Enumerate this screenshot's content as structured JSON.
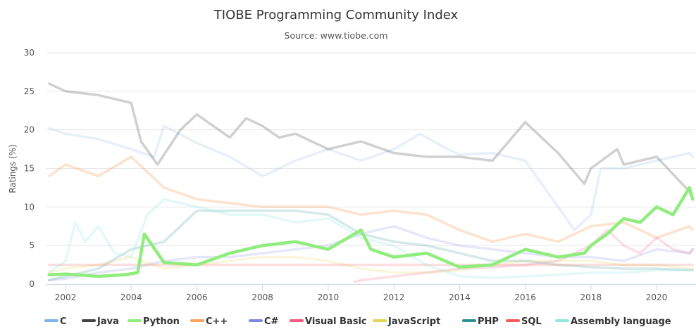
{
  "chart_data": {
    "type": "line",
    "title": "TIOBE Programming Community Index",
    "subtitle": "Source: www.tiobe.com",
    "xlabel": "",
    "ylabel": "Ratings (%)",
    "xlim": [
      2001.4,
      2021.2
    ],
    "ylim": [
      0,
      30
    ],
    "x_ticks": [
      2002,
      2004,
      2006,
      2008,
      2010,
      2012,
      2014,
      2016,
      2018,
      2020
    ],
    "y_ticks": [
      0,
      5,
      10,
      15,
      20,
      25,
      30
    ],
    "grid": "horizontal",
    "legend_position": "bottom",
    "highlighted_series": "Python",
    "series": [
      {
        "name": "C",
        "color": "#7cb5ec",
        "opacity": 0.2,
        "x": [
          2001.5,
          2002,
          2003,
          2004,
          2004.7,
          2005,
          2006,
          2007,
          2008,
          2009,
          2010,
          2011,
          2012,
          2012.8,
          2013.5,
          2014,
          2015,
          2016,
          2017,
          2017.5,
          2018,
          2018.3,
          2019,
          2020,
          2021,
          2021.1
        ],
        "y": [
          20.2,
          19.5,
          18.8,
          17.5,
          16.5,
          20.5,
          18.3,
          16.5,
          14.0,
          16.0,
          17.5,
          16.0,
          17.5,
          19.5,
          17.8,
          16.8,
          17.0,
          16.0,
          10.0,
          7.0,
          9.0,
          15.0,
          15.0,
          16.0,
          17.0,
          16.5
        ]
      },
      {
        "name": "Java",
        "color": "#434348",
        "opacity": 0.25,
        "x": [
          2001.5,
          2002,
          2003,
          2004,
          2004.3,
          2004.8,
          2005.5,
          2006,
          2007,
          2007.5,
          2008,
          2008.5,
          2009,
          2010,
          2011,
          2012,
          2013,
          2014,
          2015,
          2016,
          2017,
          2017.8,
          2018,
          2018.8,
          2019,
          2020,
          2021,
          2021.1
        ],
        "y": [
          26.0,
          25.0,
          24.5,
          23.5,
          18.5,
          15.5,
          20.0,
          22.0,
          19.0,
          21.5,
          20.5,
          19.0,
          19.5,
          17.5,
          18.5,
          17.0,
          16.5,
          16.5,
          16.0,
          21.0,
          17.0,
          13.0,
          15.0,
          17.5,
          15.5,
          16.5,
          12.0,
          11.0
        ]
      },
      {
        "name": "Python",
        "color": "#90ed7d",
        "opacity": 1,
        "highlight": true,
        "x": [
          2001.5,
          2002,
          2003,
          2003.8,
          2004.2,
          2004.4,
          2005,
          2006,
          2007,
          2008,
          2009,
          2010,
          2011,
          2011.3,
          2012,
          2013,
          2014,
          2015,
          2016,
          2017,
          2017.8,
          2018,
          2018.5,
          2019,
          2019.5,
          2020,
          2020.5,
          2021,
          2021.1
        ],
        "y": [
          1.2,
          1.3,
          1.0,
          1.2,
          1.5,
          6.5,
          2.8,
          2.5,
          4.0,
          5.0,
          5.5,
          4.5,
          7.0,
          4.5,
          3.5,
          4.0,
          2.2,
          2.5,
          4.5,
          3.5,
          4.0,
          5.0,
          6.5,
          8.5,
          8.0,
          10.0,
          9.0,
          12.5,
          11.0
        ]
      },
      {
        "name": "C++",
        "color": "#f7a35c",
        "opacity": 0.3,
        "x": [
          2001.5,
          2002,
          2003,
          2004,
          2005,
          2006,
          2007,
          2008,
          2009,
          2010,
          2011,
          2012,
          2013,
          2014,
          2015,
          2016,
          2017,
          2018,
          2019,
          2020,
          2021,
          2021.1
        ],
        "y": [
          14.0,
          15.5,
          14.0,
          16.5,
          12.5,
          11.0,
          10.5,
          10.0,
          10.0,
          10.0,
          9.0,
          9.5,
          9.0,
          7.0,
          5.5,
          6.5,
          5.5,
          7.5,
          8.0,
          6.0,
          7.5,
          7.0
        ]
      },
      {
        "name": "C#",
        "color": "#8085e9",
        "opacity": 0.2,
        "x": [
          2001.5,
          2002,
          2003,
          2004,
          2005,
          2006,
          2007,
          2008,
          2009,
          2010,
          2011,
          2012,
          2013,
          2014,
          2015,
          2016,
          2017,
          2018,
          2019,
          2020,
          2021,
          2021.1
        ],
        "y": [
          0.5,
          0.7,
          1.5,
          2.0,
          3.0,
          3.5,
          3.5,
          4.0,
          4.5,
          5.0,
          6.5,
          7.5,
          6.0,
          5.0,
          4.5,
          4.0,
          3.5,
          3.5,
          3.0,
          4.5,
          4.0,
          4.5
        ]
      },
      {
        "name": "Visual Basic",
        "color": "#f15c80",
        "opacity": 0.2,
        "x": [
          2010.8,
          2011,
          2012,
          2013,
          2014,
          2015,
          2016,
          2017,
          2018,
          2018.5,
          2019,
          2019.5,
          2020,
          2020.5,
          2021,
          2021.1
        ],
        "y": [
          0.3,
          0.5,
          1.0,
          1.5,
          2.0,
          2.2,
          2.5,
          3.0,
          5.0,
          7.0,
          5.0,
          4.0,
          6.0,
          4.5,
          4.0,
          4.5
        ]
      },
      {
        "name": "JavaScript",
        "color": "#e4d354",
        "opacity": 0.2,
        "x": [
          2001.5,
          2002,
          2003,
          2004,
          2005,
          2006,
          2007,
          2008,
          2009,
          2010,
          2011,
          2012,
          2013,
          2014,
          2015,
          2016,
          2017,
          2018,
          2019,
          2020,
          2021,
          2021.1
        ],
        "y": [
          1.5,
          2.0,
          2.5,
          3.5,
          2.0,
          2.5,
          3.0,
          3.5,
          3.5,
          3.0,
          2.0,
          1.5,
          1.5,
          1.8,
          2.5,
          3.0,
          3.0,
          3.0,
          2.5,
          2.5,
          2.0,
          2.0
        ]
      },
      {
        "name": "PHP",
        "color": "#2b908f",
        "opacity": 0.2,
        "x": [
          2001.5,
          2002,
          2003,
          2004,
          2005,
          2006,
          2007,
          2008,
          2009,
          2010,
          2011,
          2012,
          2013,
          2014,
          2015,
          2016,
          2017,
          2018,
          2019,
          2020,
          2021,
          2021.1
        ],
        "y": [
          0.5,
          1.0,
          2.0,
          4.5,
          5.5,
          9.5,
          9.5,
          9.5,
          9.5,
          9.0,
          6.5,
          5.5,
          5.0,
          4.0,
          3.0,
          3.0,
          2.5,
          2.2,
          2.0,
          2.0,
          1.8,
          1.8
        ]
      },
      {
        "name": "SQL",
        "color": "#f45b5b",
        "opacity": 0.2,
        "x": [
          2001.5,
          2021.1
        ],
        "y": [
          2.5,
          2.5
        ]
      },
      {
        "name": "Assembly language",
        "color": "#91e8e1",
        "opacity": 0.25,
        "x": [
          2001.5,
          2002,
          2002.3,
          2002.6,
          2003,
          2003.5,
          2004,
          2004.5,
          2005,
          2006,
          2007,
          2008,
          2009,
          2010,
          2011,
          2012,
          2013,
          2014,
          2015,
          2016,
          2017,
          2018,
          2019,
          2020,
          2021,
          2021.1
        ],
        "y": [
          1.5,
          3.0,
          8.0,
          5.5,
          7.5,
          4.0,
          3.5,
          9.0,
          11.0,
          10.0,
          9.0,
          9.0,
          8.0,
          8.5,
          6.0,
          5.0,
          2.5,
          1.0,
          0.8,
          1.0,
          1.2,
          1.5,
          1.5,
          1.8,
          1.8,
          1.8
        ]
      }
    ]
  }
}
